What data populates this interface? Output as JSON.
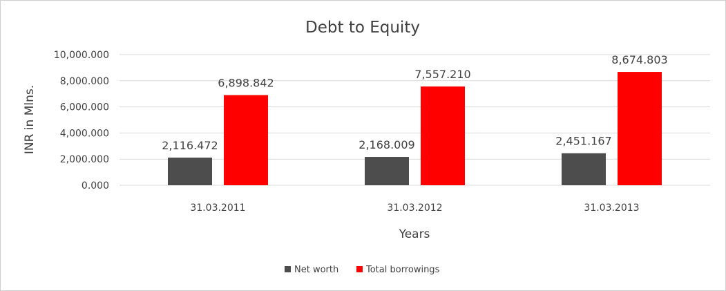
{
  "chart_data": {
    "type": "bar",
    "title": "Debt to Equity",
    "xlabel": "Years",
    "ylabel": "INR in Mlns.",
    "categories": [
      "31.03.2011",
      "31.03.2012",
      "31.03.2013"
    ],
    "ylim": [
      0,
      10000
    ],
    "yticks": [
      0,
      2000,
      4000,
      6000,
      8000,
      10000
    ],
    "ytick_labels": [
      "0.000",
      "2,000.000",
      "4,000.000",
      "6,000.000",
      "8,000.000",
      "10,000.000"
    ],
    "grid": true,
    "legend_position": "bottom",
    "series": [
      {
        "name": "Net worth",
        "color": "#4d4d4d",
        "values": [
          2116.472,
          2168.009,
          2451.167
        ],
        "labels": [
          "2,116.472",
          "2,168.009",
          "2,451.167"
        ]
      },
      {
        "name": "Total borrowings",
        "color": "#ff0000",
        "values": [
          6898.842,
          7557.21,
          8674.803
        ],
        "labels": [
          "6,898.842",
          "7,557.210",
          "8,674.803"
        ]
      }
    ]
  }
}
